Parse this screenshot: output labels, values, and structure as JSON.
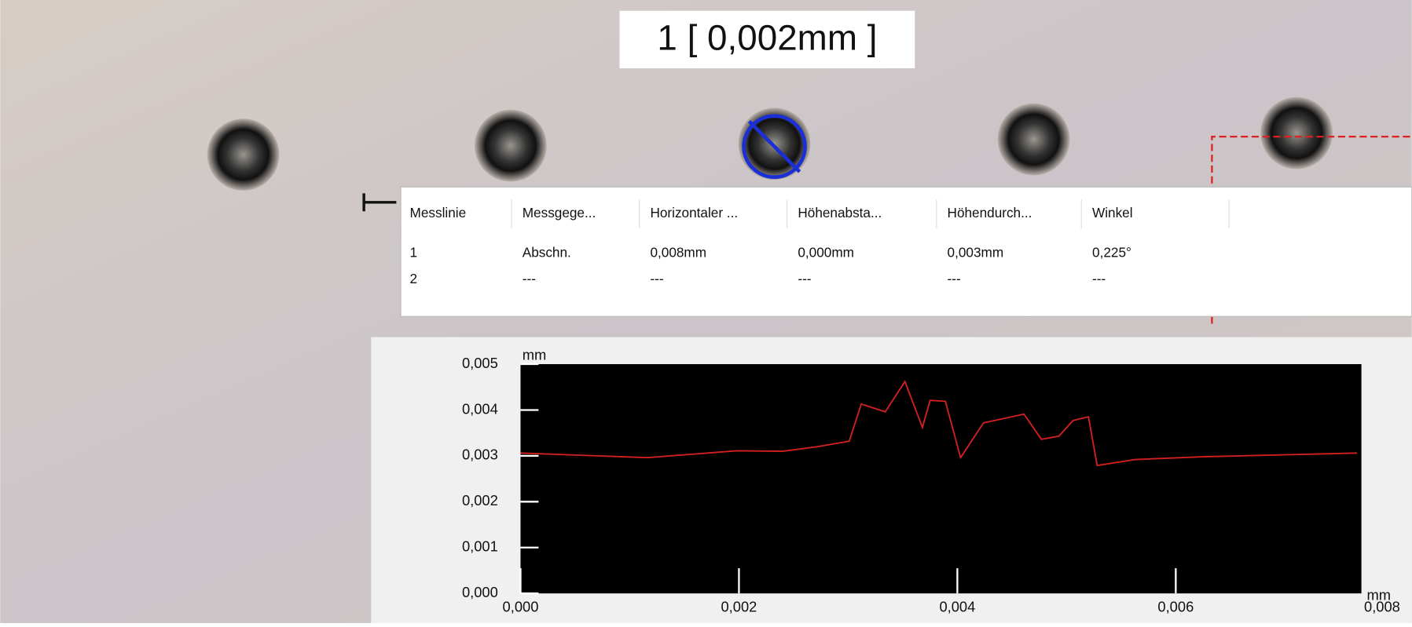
{
  "header": {
    "title": "1 [ 0,002mm ]"
  },
  "table": {
    "columns": [
      "Messlinie",
      "Messgege...",
      "Horizontaler ...",
      "Höhenabsta...",
      "Höhendurch...",
      "Winkel"
    ],
    "rows": [
      [
        "1",
        "Abschn.",
        "0,008mm",
        "0,000mm",
        "0,003mm",
        "0,225°"
      ],
      [
        "2",
        "---",
        "---",
        "---",
        "---",
        "---"
      ]
    ]
  },
  "chart_data": {
    "type": "line",
    "y_label": "mm",
    "x_label": "mm",
    "color": "#d42020",
    "x": [
      0,
      0.00116,
      0.00198,
      0.0024,
      0.00272,
      0.00301,
      0.00312,
      0.00334,
      0.00352,
      0.00368,
      0.00375,
      0.00389,
      0.00403,
      0.00424,
      0.00461,
      0.00477,
      0.00493,
      0.00506,
      0.0052,
      0.00528,
      0.00563,
      0.00625,
      0.00766
    ],
    "values": [
      0.00306,
      0.00296,
      0.00311,
      0.0031,
      0.0032,
      0.00332,
      0.00413,
      0.00396,
      0.00462,
      0.00362,
      0.00421,
      0.00419,
      0.00296,
      0.00372,
      0.00391,
      0.00336,
      0.00343,
      0.00377,
      0.00385,
      0.00279,
      0.00292,
      0.00298,
      0.00306
    ],
    "xlim": [
      0,
      0.0077
    ],
    "ylim": [
      0,
      0.005
    ],
    "xticks": [
      {
        "value": 0,
        "label": "0,000"
      },
      {
        "value": 0.002,
        "label": "0,002"
      },
      {
        "value": 0.004,
        "label": "0,004"
      },
      {
        "value": 0.006,
        "label": "0,006"
      },
      {
        "value": 0.008,
        "label": "0,008"
      }
    ],
    "yticks": [
      {
        "value": 0,
        "label": "0,000"
      },
      {
        "value": 0.001,
        "label": "0,001"
      },
      {
        "value": 0.002,
        "label": "0,002"
      },
      {
        "value": 0.003,
        "label": "0,003"
      },
      {
        "value": 0.004,
        "label": "0,004"
      },
      {
        "value": 0.005,
        "label": "0,005"
      }
    ]
  }
}
